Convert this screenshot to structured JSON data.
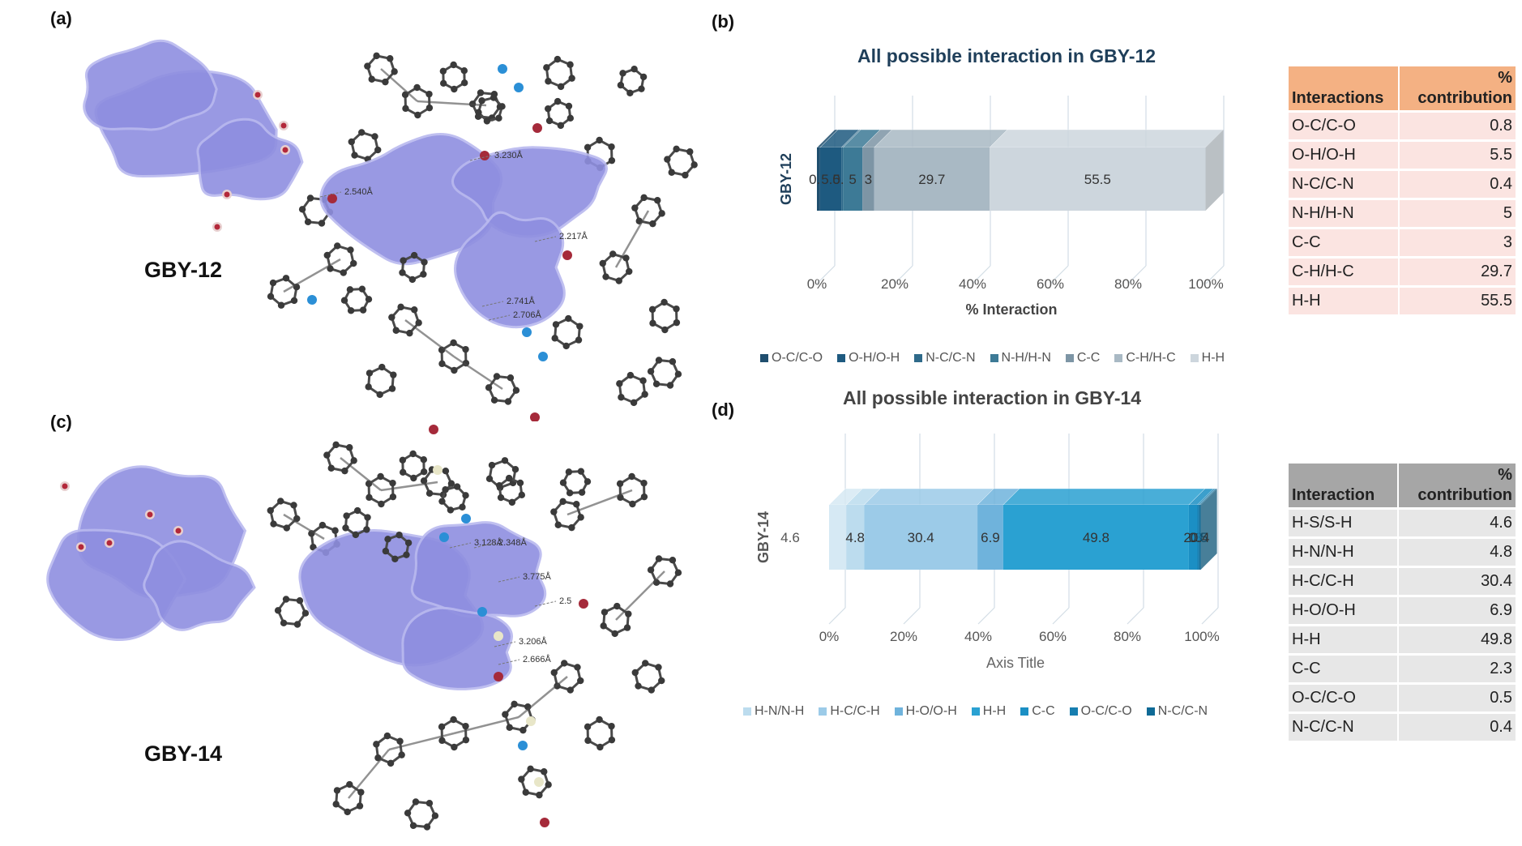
{
  "panels": {
    "a": {
      "label": "(a)",
      "molecule": "GBY-12",
      "distances": [
        "2.540Å",
        "3.230Å",
        "2.217Å",
        "2.741Å",
        "2.706Å"
      ]
    },
    "b": {
      "label": "(b)"
    },
    "c": {
      "label": "(c)",
      "molecule": "GBY-14",
      "distances": [
        "3.128Å",
        "2.348Å",
        "3.775Å",
        "2.5",
        "3.206Å",
        "2.666Å"
      ]
    },
    "d": {
      "label": "(d)"
    }
  },
  "colors": {
    "surface": "#8f8fe0",
    "atom_c": "#3a3a3a",
    "atom_n": "#2b8fd6",
    "atom_o": "#a52a3a",
    "atom_s": "#e8e6c8"
  },
  "chart_data": [
    {
      "type": "bar",
      "orientation": "horizontal-stacked-100",
      "title": "All possible interaction in GBY-12",
      "categories": [
        "GBY-12"
      ],
      "xlabel": "% Interaction",
      "ylabel": "",
      "xlim": [
        0,
        100
      ],
      "ticks": [
        "0%",
        "20%",
        "40%",
        "60%",
        "80%",
        "100%"
      ],
      "grid": true,
      "legend_position": "bottom",
      "series": [
        {
          "name": "O-C/C-O",
          "values": [
            0.8
          ],
          "color": "#1f4e6e"
        },
        {
          "name": "O-H/O-H",
          "values": [
            5.5
          ],
          "color": "#1e5a80"
        },
        {
          "name": "N-C/C-N",
          "values": [
            0.4
          ],
          "color": "#2f6a8a"
        },
        {
          "name": "N-H/H-N",
          "values": [
            5
          ],
          "color": "#3d7a96"
        },
        {
          "name": "C-C",
          "values": [
            3
          ],
          "color": "#7d95a5"
        },
        {
          "name": "C-H/H-C",
          "values": [
            29.7
          ],
          "color": "#a9b9c4"
        },
        {
          "name": "H-H",
          "values": [
            55.5
          ],
          "color": "#cdd6dd"
        }
      ],
      "segment_labels": [
        "0.8",
        "5.5",
        "0.4",
        "5",
        "3",
        "29.7",
        "55.5"
      ],
      "table": {
        "headers": [
          "Interactions",
          "% contribution"
        ],
        "rows": [
          [
            "O-C/C-O",
            "0.8"
          ],
          [
            "O-H/O-H",
            "5.5"
          ],
          [
            "N-C/C-N",
            "0.4"
          ],
          [
            "N-H/H-N",
            "5"
          ],
          [
            "C-C",
            "3"
          ],
          [
            "C-H/H-C",
            "29.7"
          ],
          [
            "H-H",
            "55.5"
          ]
        ]
      }
    },
    {
      "type": "bar",
      "orientation": "horizontal-stacked-100",
      "title": "All possible interaction in GBY-14",
      "categories": [
        "GBY-14"
      ],
      "xlabel": "Axis Title",
      "ylabel": "",
      "xlim": [
        0,
        100
      ],
      "ticks": [
        "0%",
        "20%",
        "40%",
        "60%",
        "80%",
        "100%"
      ],
      "grid": true,
      "legend_position": "bottom",
      "outside_label": "4.6",
      "series": [
        {
          "name": "H-S/S-H",
          "values": [
            4.6
          ],
          "color": "#d6e9f4"
        },
        {
          "name": "H-N/N-H",
          "values": [
            4.8
          ],
          "color": "#bcdcee"
        },
        {
          "name": "H-C/C-H",
          "values": [
            30.4
          ],
          "color": "#9ccbe8"
        },
        {
          "name": "H-O/O-H",
          "values": [
            6.9
          ],
          "color": "#6fb3dc"
        },
        {
          "name": "H-H",
          "values": [
            49.8
          ],
          "color": "#2aa1d2"
        },
        {
          "name": "C-C",
          "values": [
            2.3
          ],
          "color": "#1b8fc4"
        },
        {
          "name": "O-C/C-O",
          "values": [
            0.5
          ],
          "color": "#167eb0"
        },
        {
          "name": "N-C/C-N",
          "values": [
            0.4
          ],
          "color": "#0f6a96"
        }
      ],
      "segment_labels": [
        "",
        "4.8",
        "30.4",
        "6.9",
        "49.8",
        "2.3",
        "0.5",
        "0.4"
      ],
      "legend_entries": [
        "H-N/N-H",
        "H-C/C-H",
        "H-O/O-H",
        "H-H",
        "C-C",
        "O-C/C-O",
        "N-C/C-N"
      ],
      "table": {
        "headers": [
          "Interaction",
          "% contribution"
        ],
        "rows": [
          [
            "H-S/S-H",
            "4.6"
          ],
          [
            "H-N/N-H",
            "4.8"
          ],
          [
            "H-C/C-H",
            "30.4"
          ],
          [
            "H-O/O-H",
            "6.9"
          ],
          [
            "H-H",
            "49.8"
          ],
          [
            "C-C",
            "2.3"
          ],
          [
            "O-C/C-O",
            "0.5"
          ],
          [
            "N-C/C-N",
            "0.4"
          ]
        ]
      }
    }
  ]
}
